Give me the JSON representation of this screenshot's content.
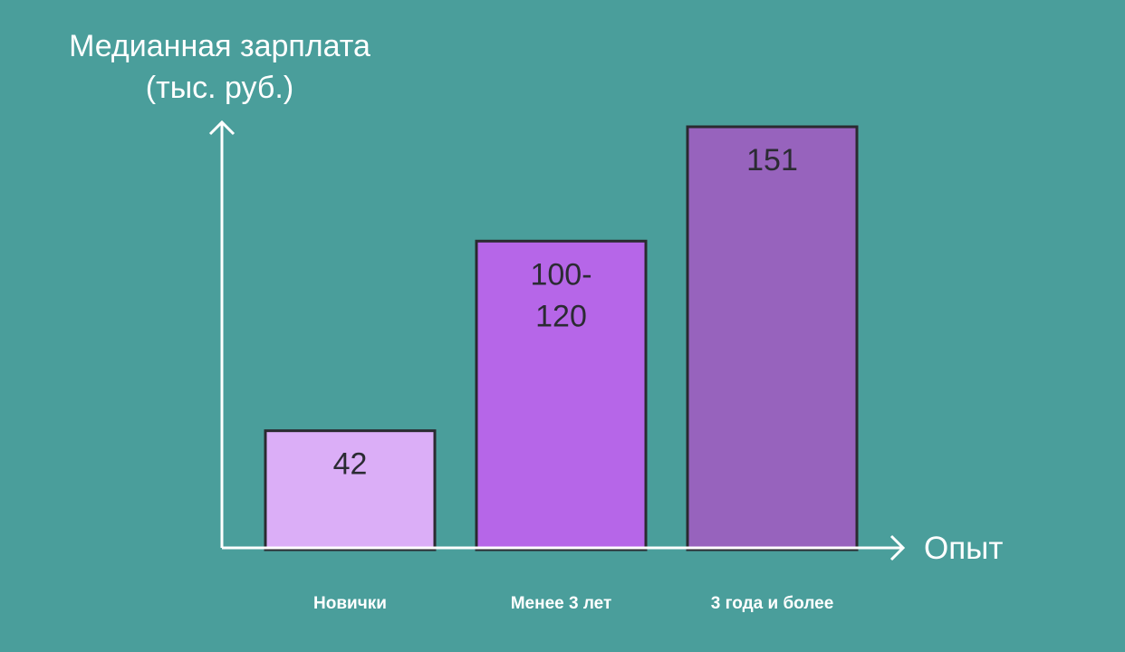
{
  "chart_data": {
    "type": "bar",
    "title": "",
    "ylabel_lines": [
      "Медианная зарплата",
      "(тыс. руб.)"
    ],
    "xlabel": "Опыт",
    "categories": [
      "Новички",
      "Менее 3 лет",
      "3 года и более"
    ],
    "values": [
      42,
      110,
      151
    ],
    "value_labels": [
      [
        "42"
      ],
      [
        "100-",
        "120"
      ],
      [
        "151"
      ]
    ],
    "ylim": [
      0,
      151
    ],
    "grid": false,
    "legend": "none"
  },
  "colors": {
    "background": "#4a9e9b",
    "bars": [
      "#dbaef7",
      "#b666e8",
      "#9763bd"
    ],
    "bar_border": "#2a2a30",
    "axis": "#ffffff"
  }
}
